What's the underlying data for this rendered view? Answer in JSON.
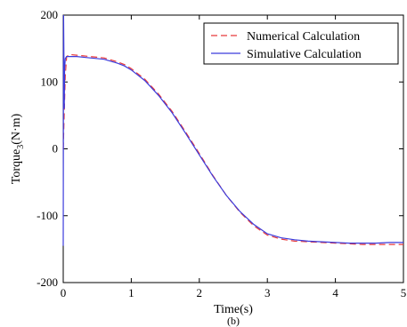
{
  "chart_data": {
    "type": "line",
    "caption": "(b)",
    "xlabel": "Time(s)",
    "ylabel": {
      "main": "Torque",
      "sub": "3",
      "unit": "(N·m)"
    },
    "xlim": [
      0,
      5
    ],
    "ylim": [
      -200,
      200
    ],
    "x_ticks": [
      0,
      1,
      2,
      3,
      4,
      5
    ],
    "y_ticks": [
      -200,
      -100,
      0,
      100,
      200
    ],
    "grid": false,
    "legend_position": "top-right",
    "series": [
      {
        "name": "Numerical Calculation",
        "color": "#e8393b",
        "dash": "dashed",
        "x": [
          0,
          0.03,
          0.05,
          0.08,
          0.1,
          0.2,
          0.3,
          0.4,
          0.5,
          0.6,
          0.7,
          0.8,
          0.9,
          1.0,
          1.2,
          1.4,
          1.6,
          1.8,
          2.0,
          2.2,
          2.4,
          2.6,
          2.8,
          3.0,
          3.2,
          3.4,
          3.6,
          3.8,
          4.0,
          4.2,
          4.4,
          4.6,
          4.8,
          5.0
        ],
        "y": [
          0,
          110,
          138,
          140,
          141,
          140,
          139,
          138,
          137,
          136,
          133,
          130,
          126,
          120,
          104,
          82,
          56,
          25,
          -7,
          -40,
          -70,
          -95,
          -115,
          -129,
          -135,
          -138,
          -139,
          -140,
          -141,
          -142,
          -143,
          -143,
          -143,
          -143
        ]
      },
      {
        "name": "Simulative Calculation",
        "color": "#3b3bdc",
        "dash": "solid",
        "x": [
          0,
          0.005,
          0.01,
          0.015,
          0.02,
          0.03,
          0.05,
          0.08,
          0.1,
          0.2,
          0.3,
          0.4,
          0.5,
          0.6,
          0.7,
          0.8,
          0.9,
          1.0,
          1.2,
          1.4,
          1.6,
          1.8,
          2.0,
          2.2,
          2.4,
          2.6,
          2.8,
          3.0,
          3.2,
          3.4,
          3.6,
          3.8,
          4.0,
          4.2,
          4.4,
          4.6,
          4.8,
          5.0
        ],
        "y": [
          -145,
          200,
          140,
          60,
          120,
          135,
          138,
          138,
          138,
          138,
          137,
          136,
          135,
          134,
          131,
          128,
          124,
          118,
          102,
          80,
          54,
          23,
          -9,
          -41,
          -70,
          -94,
          -113,
          -127,
          -133,
          -136,
          -138,
          -139,
          -140,
          -141,
          -141,
          -141,
          -140,
          -140
        ]
      }
    ]
  }
}
